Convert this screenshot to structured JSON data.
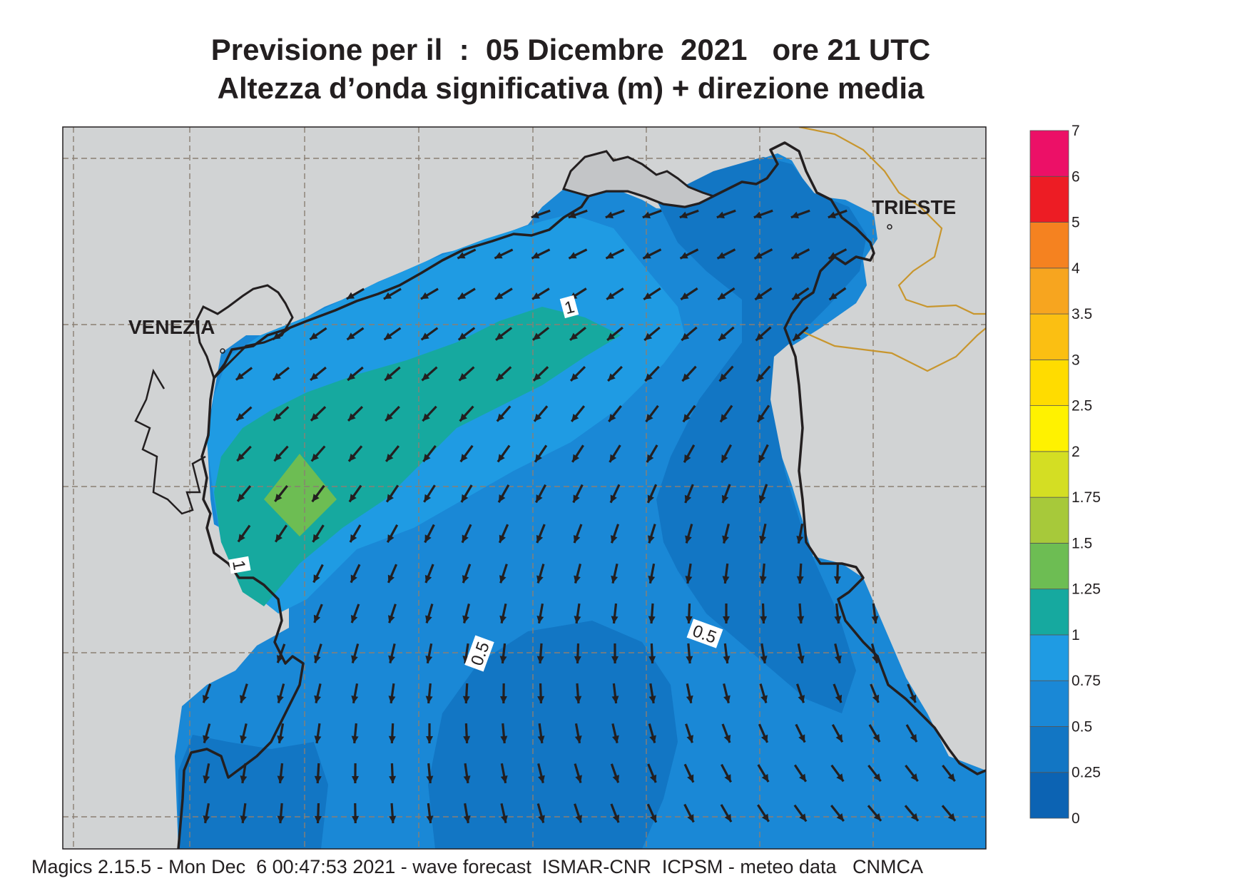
{
  "header": {
    "title_line1": "Previsione per il  :  05 Dicembre  2021   ore 21 UTC",
    "title_line2": "Altezza d’onda significativa (m) + direzione media"
  },
  "map": {
    "cities": [
      "VENEZIA",
      "TRIESTE"
    ],
    "contour_labels": [
      "1",
      "1",
      "0.5",
      "0.5"
    ],
    "colors": {
      "land": "#d1d3d4",
      "coast": "#231f20",
      "border": "#c8962e",
      "arrow": "#231f20"
    }
  },
  "legend": {
    "levels": [
      "0",
      "0.25",
      "0.5",
      "0.75",
      "1",
      "1.25",
      "1.5",
      "1.75",
      "2",
      "2.5",
      "3",
      "3.5",
      "4",
      "5",
      "6",
      "7"
    ],
    "colors": [
      "#0c63b3",
      "#1276c4",
      "#1a88d6",
      "#1f9be3",
      "#16a99f",
      "#6dbd53",
      "#a7c93a",
      "#d4de23",
      "#fff200",
      "#ffdc00",
      "#fbbf12",
      "#f7a51f",
      "#f58220",
      "#ed1c24",
      "#ec1067"
    ]
  },
  "footer": {
    "text": "Magics 2.15.5 - Mon Dec  6 00:47:53 2021 - wave forecast  ISMAR-CNR  ICPSM - meteo data   CNMCA"
  }
}
